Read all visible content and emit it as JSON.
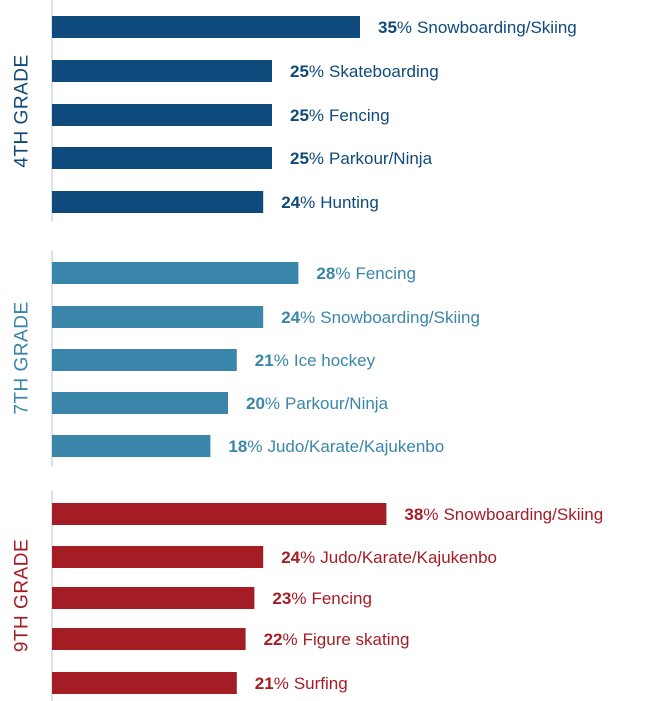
{
  "chart_data": [
    {
      "type": "bar",
      "title": "4TH GRADE",
      "color": "#0e4a7b",
      "categories": [
        "Snowboarding/Skiing",
        "Skateboarding",
        "Fencing",
        "Parkour/Ninja",
        "Hunting"
      ],
      "values": [
        35,
        25,
        25,
        25,
        24
      ],
      "value_labels": [
        "35%",
        "25%",
        "25%",
        "25%",
        "24%"
      ]
    },
    {
      "type": "bar",
      "title": "7TH GRADE",
      "color": "#3a86aa",
      "categories": [
        "Fencing",
        "Snowboarding/Skiing",
        "Ice hockey",
        "Parkour/Ninja",
        "Judo/Karate/Kajukenbo"
      ],
      "values": [
        28,
        24,
        21,
        20,
        18
      ],
      "value_labels": [
        "28%",
        "24%",
        "21%",
        "20%",
        "18%"
      ]
    },
    {
      "type": "bar",
      "title": "9TH GRADE",
      "color": "#a51d24",
      "categories": [
        "Snowboarding/Skiing",
        "Judo/Karate/Kajukenbo",
        "Fencing",
        "Figure skating",
        "Surfing"
      ],
      "values": [
        38,
        24,
        23,
        22,
        21
      ],
      "value_labels": [
        "38%",
        "24%",
        "23%",
        "22%",
        "21%"
      ]
    }
  ]
}
